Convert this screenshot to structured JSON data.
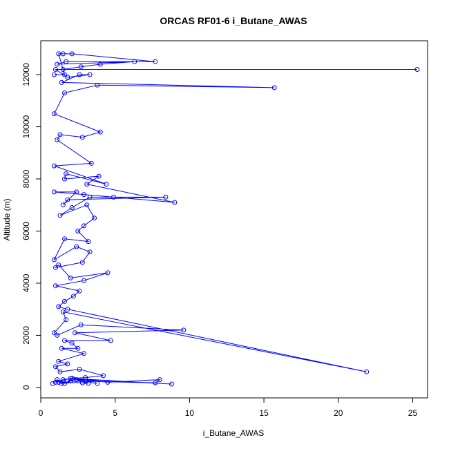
{
  "chart_data": {
    "type": "line",
    "title": "ORCAS RF01-6 i_Butane_AWAS",
    "xlabel": "i_Butane_AWAS",
    "ylabel": "Altitude (m)",
    "xlim": [
      0,
      26
    ],
    "ylim": [
      -400,
      13300
    ],
    "x_ticks": [
      0,
      5,
      10,
      15,
      20,
      25
    ],
    "y_ticks": [
      0,
      2000,
      4000,
      6000,
      8000,
      10000,
      12000
    ],
    "grid": false,
    "marker": "open-circle",
    "color": "#0000ff",
    "series": [
      {
        "points": [
          [
            0.8,
            150
          ],
          [
            1.1,
            300
          ],
          [
            1.4,
            150
          ],
          [
            2.0,
            250
          ],
          [
            1.6,
            150
          ],
          [
            1.2,
            200
          ],
          [
            2.8,
            180
          ],
          [
            3.2,
            160
          ],
          [
            2.4,
            300
          ],
          [
            3.8,
            150
          ],
          [
            3.0,
            230
          ],
          [
            1.8,
            250
          ],
          [
            7.7,
            180
          ],
          [
            8.0,
            300
          ],
          [
            4.5,
            200
          ],
          [
            2.2,
            320
          ],
          [
            8.8,
            130
          ],
          [
            2.0,
            350
          ],
          [
            1.0,
            200
          ],
          [
            1.5,
            300
          ],
          [
            2.1,
            350
          ],
          [
            3.0,
            380
          ],
          [
            4.2,
            450
          ],
          [
            2.6,
            700
          ],
          [
            1.3,
            600
          ],
          [
            1.0,
            800
          ],
          [
            1.8,
            900
          ],
          [
            1.2,
            1000
          ],
          [
            2.9,
            1300
          ],
          [
            1.4,
            1500
          ],
          [
            2.5,
            1500
          ],
          [
            2.1,
            1700
          ],
          [
            1.6,
            1800
          ],
          [
            4.7,
            1800
          ],
          [
            2.3,
            2100
          ],
          [
            9.6,
            2200
          ],
          [
            2.7,
            2400
          ],
          [
            1.1,
            2000
          ],
          [
            0.9,
            2100
          ],
          [
            1.7,
            2600
          ],
          [
            1.5,
            2900
          ],
          [
            21.9,
            600
          ],
          [
            1.8,
            3000
          ],
          [
            1.2,
            3100
          ],
          [
            1.6,
            3300
          ],
          [
            2.2,
            3500
          ],
          [
            2.6,
            3700
          ],
          [
            1.0,
            3900
          ],
          [
            2.9,
            4100
          ],
          [
            4.5,
            4400
          ],
          [
            2.0,
            4200
          ],
          [
            1.2,
            4700
          ],
          [
            1.0,
            4600
          ],
          [
            2.8,
            4800
          ],
          [
            3.3,
            5200
          ],
          [
            2.4,
            5400
          ],
          [
            0.9,
            4900
          ],
          [
            1.6,
            5700
          ],
          [
            3.2,
            5600
          ],
          [
            2.5,
            6000
          ],
          [
            2.9,
            6200
          ],
          [
            3.6,
            6500
          ],
          [
            3.1,
            7000
          ],
          [
            1.3,
            6600
          ],
          [
            2.1,
            6900
          ],
          [
            3.3,
            7300
          ],
          [
            4.9,
            7300
          ],
          [
            8.4,
            7300
          ],
          [
            1.8,
            7200
          ],
          [
            1.5,
            7000
          ],
          [
            2.4,
            7500
          ],
          [
            0.9,
            7500
          ],
          [
            2.9,
            7400
          ],
          [
            9.0,
            7100
          ],
          [
            3.1,
            7800
          ],
          [
            3.9,
            8100
          ],
          [
            1.6,
            8000
          ],
          [
            1.7,
            8200
          ],
          [
            4.4,
            7800
          ],
          [
            0.9,
            8500
          ],
          [
            3.4,
            8600
          ],
          [
            1.1,
            9500
          ],
          [
            1.3,
            9700
          ],
          [
            2.8,
            9600
          ],
          [
            4.0,
            9800
          ],
          [
            0.9,
            10500
          ],
          [
            1.6,
            11300
          ],
          [
            3.8,
            11600
          ],
          [
            15.7,
            11500
          ],
          [
            1.4,
            11700
          ],
          [
            2.6,
            12000
          ],
          [
            3.3,
            12000
          ],
          [
            1.8,
            11900
          ],
          [
            1.0,
            12200
          ],
          [
            25.3,
            12200
          ],
          [
            1.5,
            12200
          ],
          [
            2.7,
            12300
          ],
          [
            4.0,
            12400
          ],
          [
            6.3,
            12500
          ],
          [
            1.1,
            12400
          ],
          [
            1.7,
            12500
          ],
          [
            7.7,
            12500
          ],
          [
            2.1,
            12800
          ],
          [
            1.5,
            12800
          ],
          [
            1.2,
            12800
          ],
          [
            1.6,
            12000
          ],
          [
            0.9,
            12000
          ]
        ]
      }
    ]
  }
}
